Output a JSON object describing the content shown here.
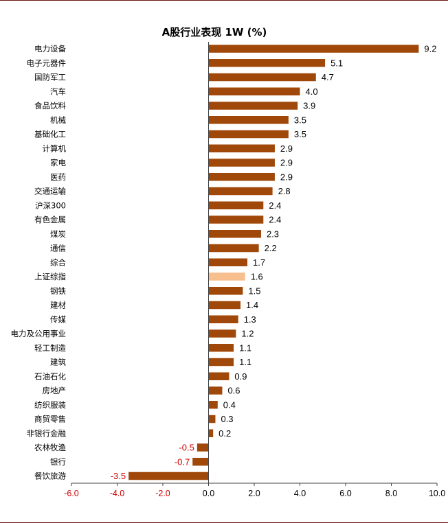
{
  "chart_data": {
    "type": "bar",
    "orientation": "horizontal",
    "title": "A股行业表现 1W (%)",
    "categories": [
      "电力设备",
      "电子元器件",
      "国防军工",
      "汽车",
      "食品饮料",
      "机械",
      "基础化工",
      "计算机",
      "家电",
      "医药",
      "交通运输",
      "沪深300",
      "有色金属",
      "煤炭",
      "通信",
      "综合",
      "上证综指",
      "钢铁",
      "建材",
      "传媒",
      "电力及公用事业",
      "轻工制造",
      "建筑",
      "石油石化",
      "房地产",
      "纺织服装",
      "商贸零售",
      "非银行金融",
      "农林牧渔",
      "银行",
      "餐饮旅游"
    ],
    "values": [
      9.2,
      5.1,
      4.7,
      4.0,
      3.9,
      3.5,
      3.5,
      2.9,
      2.9,
      2.9,
      2.8,
      2.4,
      2.4,
      2.3,
      2.2,
      1.7,
      1.6,
      1.5,
      1.4,
      1.3,
      1.2,
      1.1,
      1.1,
      0.9,
      0.6,
      0.4,
      0.3,
      0.2,
      -0.5,
      -0.7,
      -3.5
    ],
    "value_labels": [
      "9.2",
      "5.1",
      "4.7",
      "4.0",
      "3.9",
      "3.5",
      "3.5",
      "2.9",
      "2.9",
      "2.9",
      "2.8",
      "2.4",
      "2.4",
      "2.3",
      "2.2",
      "1.7",
      "1.6",
      "1.5",
      "1.4",
      "1.3",
      "1.2",
      "1.1",
      "1.1",
      "0.9",
      "0.6",
      "0.4",
      "0.3",
      "0.2",
      "-0.5",
      "-0.7",
      "-3.5"
    ],
    "highlight_category": "上证综指",
    "xlim": [
      -6.0,
      10.0
    ],
    "xticks": [
      -6.0,
      -4.0,
      -2.0,
      0.0,
      2.0,
      4.0,
      6.0,
      8.0,
      10.0
    ],
    "xtick_labels": [
      "-6.0",
      "-4.0",
      "-2.0",
      "0.0",
      "2.0",
      "4.0",
      "6.0",
      "8.0",
      "10.0"
    ],
    "grid": false,
    "legend": "none",
    "xlabel": "",
    "ylabel": ""
  },
  "colors": {
    "bar": "#a0480a",
    "highlight_bar": "#f8bf8e",
    "negative_label": "#d00000",
    "frame": "#6b1414",
    "axis": "#444444"
  }
}
